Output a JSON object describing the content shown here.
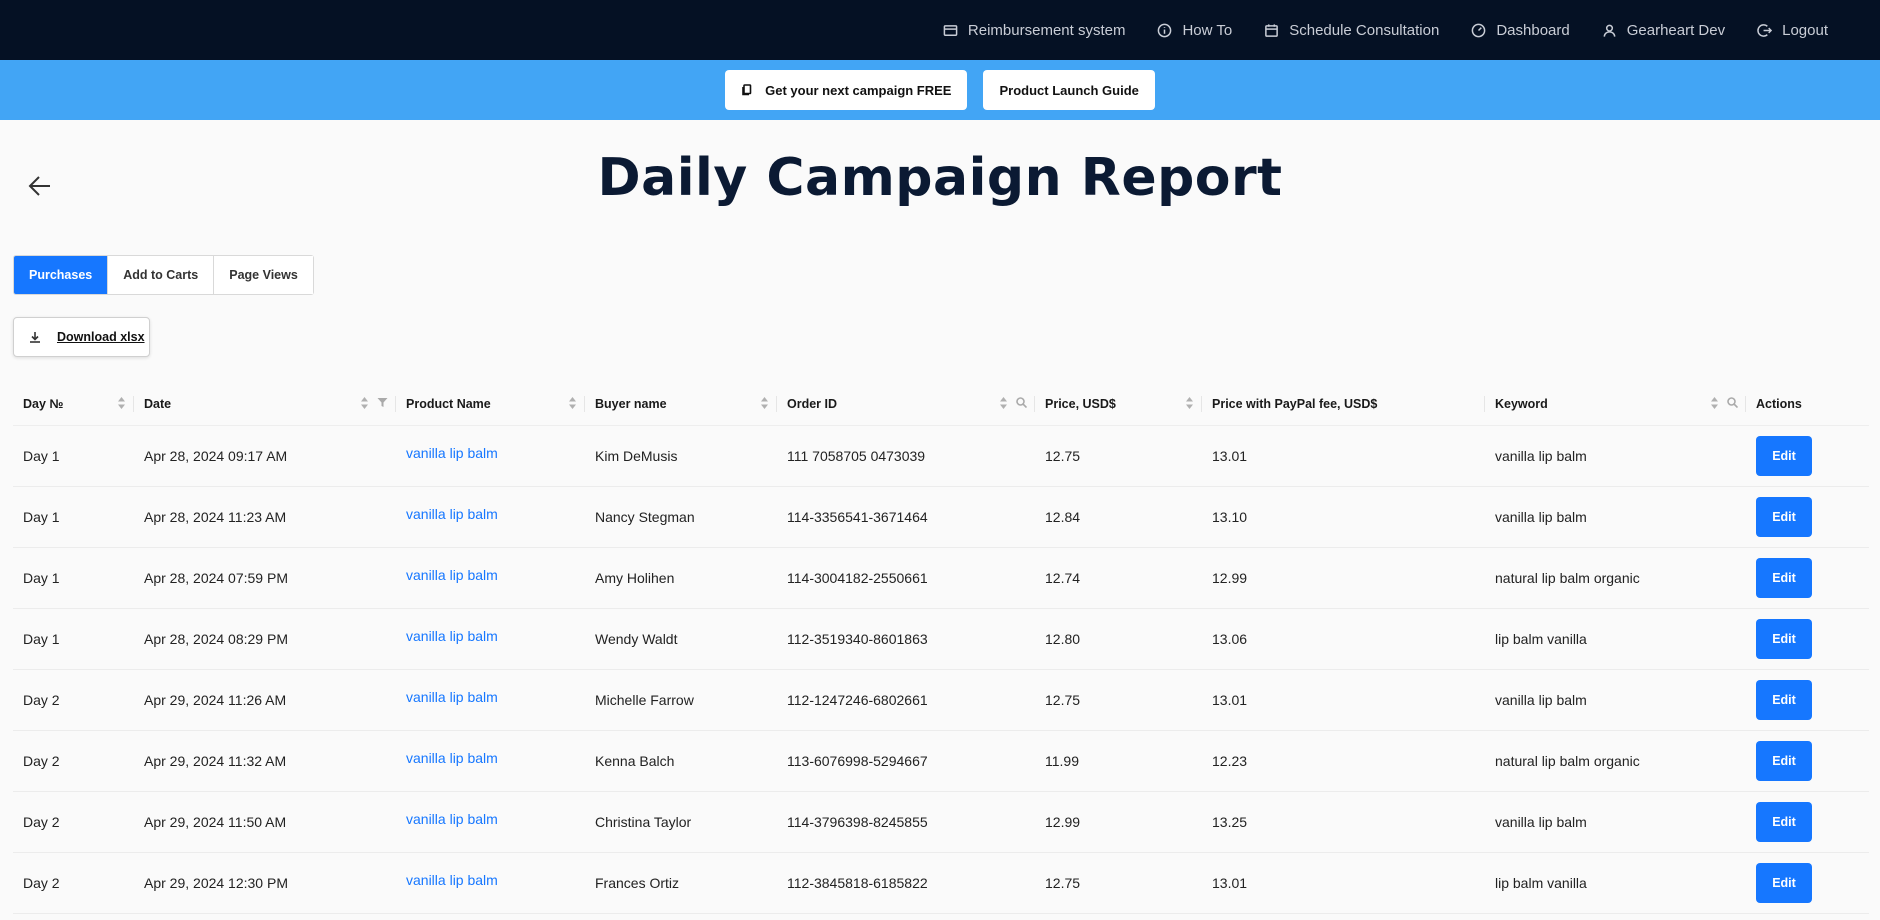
{
  "nav": {
    "items": [
      {
        "label": "Reimbursement system",
        "icon": "card-icon"
      },
      {
        "label": "How To",
        "icon": "info-icon"
      },
      {
        "label": "Schedule Consultation",
        "icon": "calendar-icon"
      },
      {
        "label": "Dashboard",
        "icon": "gauge-icon"
      },
      {
        "label": "Gearheart Dev",
        "icon": "user-icon"
      },
      {
        "label": "Logout",
        "icon": "logout-icon"
      }
    ]
  },
  "promo": {
    "free_campaign_label": "Get your next campaign FREE",
    "launch_guide_label": "Product Launch Guide"
  },
  "page": {
    "title": "Daily Campaign Report"
  },
  "tabs": [
    "Purchases",
    "Add to Carts",
    "Page Views"
  ],
  "download_label": "Download xlsx",
  "table": {
    "columns": [
      "Day №",
      "Date",
      "Product Name",
      "Buyer name",
      "Order ID",
      "Price, USD$",
      "Price with PayPal fee, USD$",
      "Keyword",
      "Actions"
    ],
    "edit_label": "Edit",
    "rows": [
      {
        "day": "Day 1",
        "date": "Apr 28, 2024 09:17 AM",
        "product": "vanilla lip balm",
        "buyer": "Kim DeMusis",
        "order_id": "111 7058705 0473039",
        "price": "12.75",
        "price_fee": "13.01",
        "keyword": "vanilla lip balm"
      },
      {
        "day": "Day 1",
        "date": "Apr 28, 2024 11:23 AM",
        "product": "vanilla lip balm",
        "buyer": "Nancy Stegman",
        "order_id": "114-3356541-3671464",
        "price": "12.84",
        "price_fee": "13.10",
        "keyword": "vanilla lip balm"
      },
      {
        "day": "Day 1",
        "date": "Apr 28, 2024 07:59 PM",
        "product": "vanilla lip balm",
        "buyer": "Amy Holihen",
        "order_id": "114-3004182-2550661",
        "price": "12.74",
        "price_fee": "12.99",
        "keyword": "natural lip balm organic"
      },
      {
        "day": "Day 1",
        "date": "Apr 28, 2024 08:29 PM",
        "product": "vanilla lip balm",
        "buyer": "Wendy Waldt",
        "order_id": "112-3519340-8601863",
        "price": "12.80",
        "price_fee": "13.06",
        "keyword": "lip balm vanilla"
      },
      {
        "day": "Day 2",
        "date": "Apr 29, 2024 11:26 AM",
        "product": "vanilla lip balm",
        "buyer": "Michelle Farrow",
        "order_id": "112-1247246-6802661",
        "price": "12.75",
        "price_fee": "13.01",
        "keyword": "vanilla lip balm"
      },
      {
        "day": "Day 2",
        "date": "Apr 29, 2024 11:32 AM",
        "product": "vanilla lip balm",
        "buyer": "Kenna Balch",
        "order_id": "113-6076998-5294667",
        "price": "11.99",
        "price_fee": "12.23",
        "keyword": "natural lip balm organic"
      },
      {
        "day": "Day 2",
        "date": "Apr 29, 2024 11:50 AM",
        "product": "vanilla lip balm",
        "buyer": "Christina Taylor",
        "order_id": "114-3796398-8245855",
        "price": "12.99",
        "price_fee": "13.25",
        "keyword": "vanilla lip balm"
      },
      {
        "day": "Day 2",
        "date": "Apr 29, 2024 12:30 PM",
        "product": "vanilla lip balm",
        "buyer": "Frances Ortiz",
        "order_id": "112-3845818-6185822",
        "price": "12.75",
        "price_fee": "13.01",
        "keyword": "lip balm vanilla"
      }
    ]
  }
}
